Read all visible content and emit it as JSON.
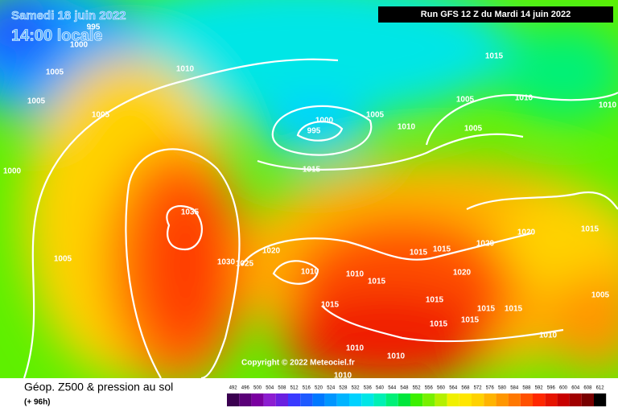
{
  "header": {
    "date": "Samedi 18 juin 2022",
    "time": "14:00 locale",
    "run": "Run GFS 12 Z du Mardi 14 juin 2022"
  },
  "copyright": "Copyright © 2022 Meteociel.fr",
  "footer": {
    "title": "Géop. Z500 & pression au sol",
    "lead": "(+ 96h)"
  },
  "isobar_labels": [
    995,
    1000,
    1005,
    1010,
    1005,
    1005,
    1000,
    1005,
    1035,
    1030,
    1025,
    1020,
    1010,
    1010,
    1015,
    1015,
    1000,
    995,
    1005,
    1010,
    1015,
    1015,
    1005,
    1010,
    1010,
    1005,
    1020,
    1020,
    1015,
    1015,
    1015,
    1020,
    1015,
    1015,
    1015,
    1015,
    1015,
    1010,
    1010,
    1010,
    1010,
    1005
  ],
  "legend": {
    "ticks": [
      492,
      496,
      500,
      504,
      508,
      512,
      516,
      520,
      524,
      528,
      532,
      536,
      540,
      544,
      548,
      552,
      556,
      560,
      564,
      568,
      572,
      576,
      580,
      584,
      588,
      592,
      596,
      600,
      604,
      608,
      612
    ],
    "colors": [
      "#3a0050",
      "#5a0078",
      "#7a00a0",
      "#8c1ed0",
      "#6a20e0",
      "#3a3aff",
      "#1e5aff",
      "#0078ff",
      "#0096ff",
      "#00b4ff",
      "#00d2ff",
      "#00e6e6",
      "#00f0b4",
      "#00f078",
      "#00e63c",
      "#3cf000",
      "#78f000",
      "#b4f000",
      "#f0f000",
      "#ffe600",
      "#ffd200",
      "#ffb400",
      "#ff9600",
      "#ff7800",
      "#ff5000",
      "#ff2800",
      "#e61400",
      "#c80000",
      "#a00000",
      "#780000",
      "#000000"
    ]
  }
}
